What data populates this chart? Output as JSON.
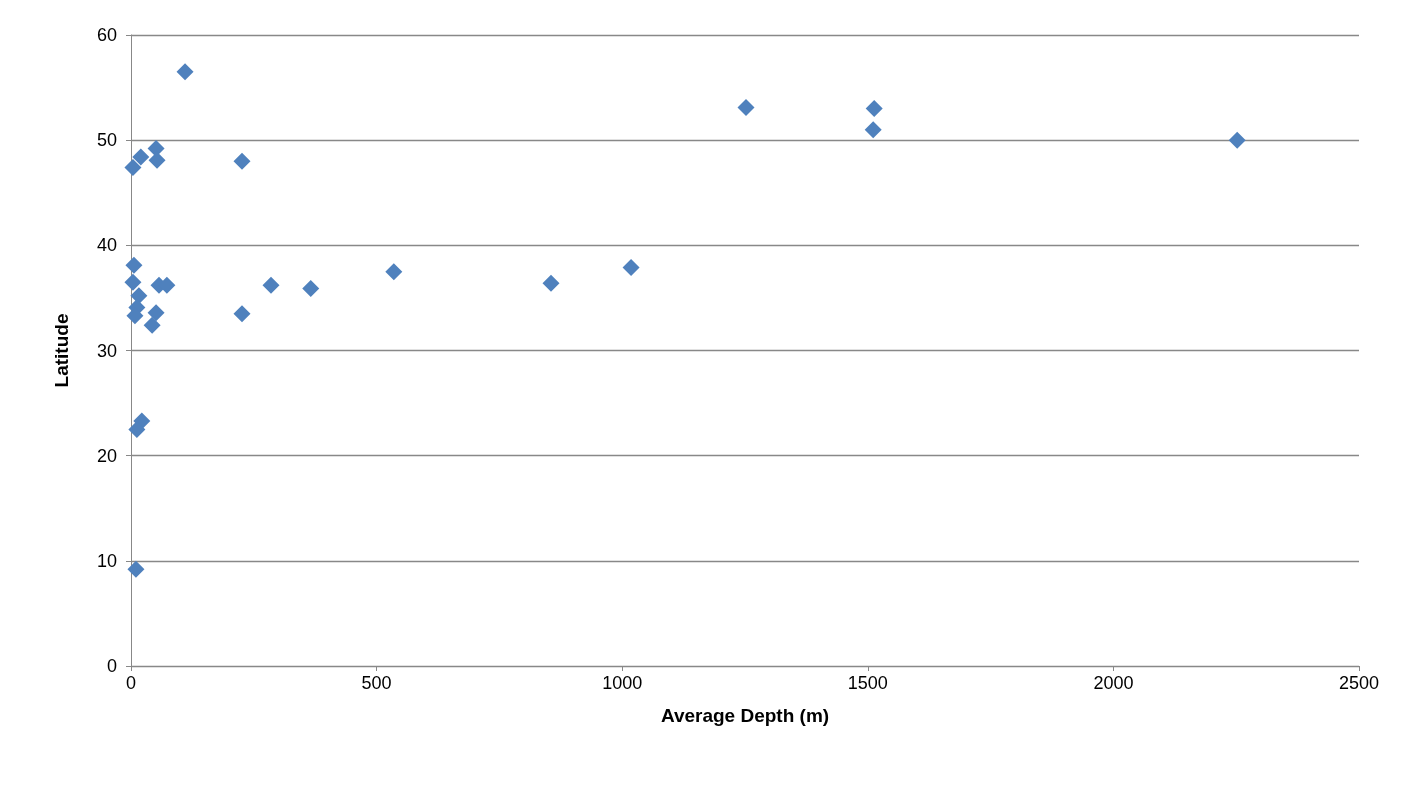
{
  "chart_data": {
    "type": "scatter",
    "xlabel": "Average Depth (m)",
    "ylabel": "Latitude",
    "marker": "diamond",
    "grid": "y",
    "xlim": [
      0,
      2500
    ],
    "xticks": [
      0,
      500,
      1000,
      1500,
      2000,
      2500
    ],
    "ylim": [
      0,
      60
    ],
    "yticks": [
      0,
      10,
      20,
      30,
      40,
      50,
      60
    ],
    "series": [
      {
        "color": "#4f81bd",
        "x": [
          110,
          226,
          51,
          53,
          20,
          4,
          6,
          4,
          57,
          73,
          16,
          12,
          8,
          51,
          43,
          226,
          285,
          366,
          535,
          855,
          1018,
          1252,
          1513,
          1511,
          2252,
          22,
          12,
          10
        ],
        "values": [
          56.5,
          48.0,
          49.2,
          48.1,
          48.4,
          47.4,
          38.1,
          36.5,
          36.2,
          36.2,
          35.2,
          34.1,
          33.3,
          33.6,
          32.4,
          33.5,
          36.2,
          35.9,
          37.5,
          36.4,
          37.9,
          53.1,
          53.0,
          51.0,
          50.0,
          23.3,
          22.5,
          9.2
        ]
      }
    ]
  }
}
